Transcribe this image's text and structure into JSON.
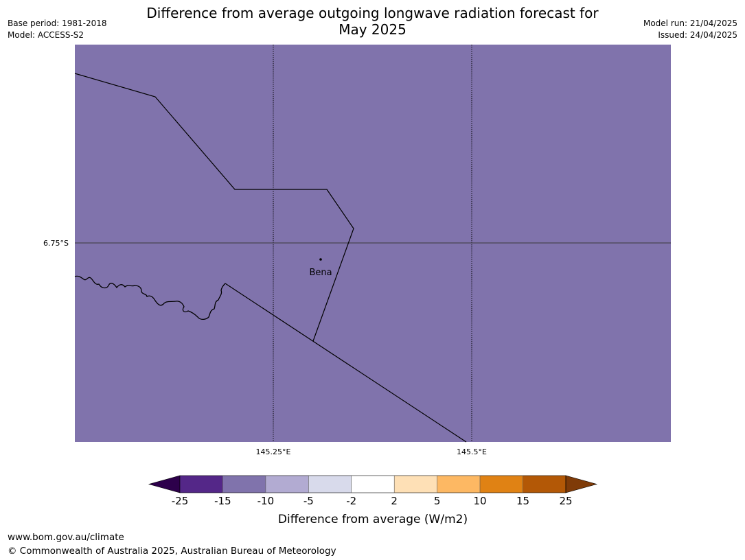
{
  "header": {
    "title_line1": "Difference from average outgoing longwave radiation forecast for",
    "title_line2": "May 2025",
    "base_period": "Base period: 1981-2018",
    "model": "Model: ACCESS-S2",
    "model_run": "Model run: 21/04/2025",
    "issued": "Issued: 24/04/2025"
  },
  "map": {
    "fill_color": "#8073ac",
    "lat_label": "6.75°S",
    "lon_labels": [
      "145.25°E",
      "145.5°E"
    ],
    "place_name": "Bena"
  },
  "colorbar": {
    "label": "Difference from average (W/m2)",
    "ticks": [
      "-25",
      "-15",
      "-10",
      "-5",
      "-2",
      "2",
      "5",
      "10",
      "15",
      "25"
    ],
    "colors": [
      "#2d004b",
      "#542788",
      "#8073ac",
      "#b2abd2",
      "#d8daeb",
      "#ffffff",
      "#fee0b6",
      "#fdb863",
      "#e08214",
      "#b35806",
      "#7f3b08"
    ]
  },
  "footer": {
    "url": "www.bom.gov.au/climate",
    "copyright": "© Commonwealth of Australia 2025, Australian Bureau of Meteorology"
  }
}
